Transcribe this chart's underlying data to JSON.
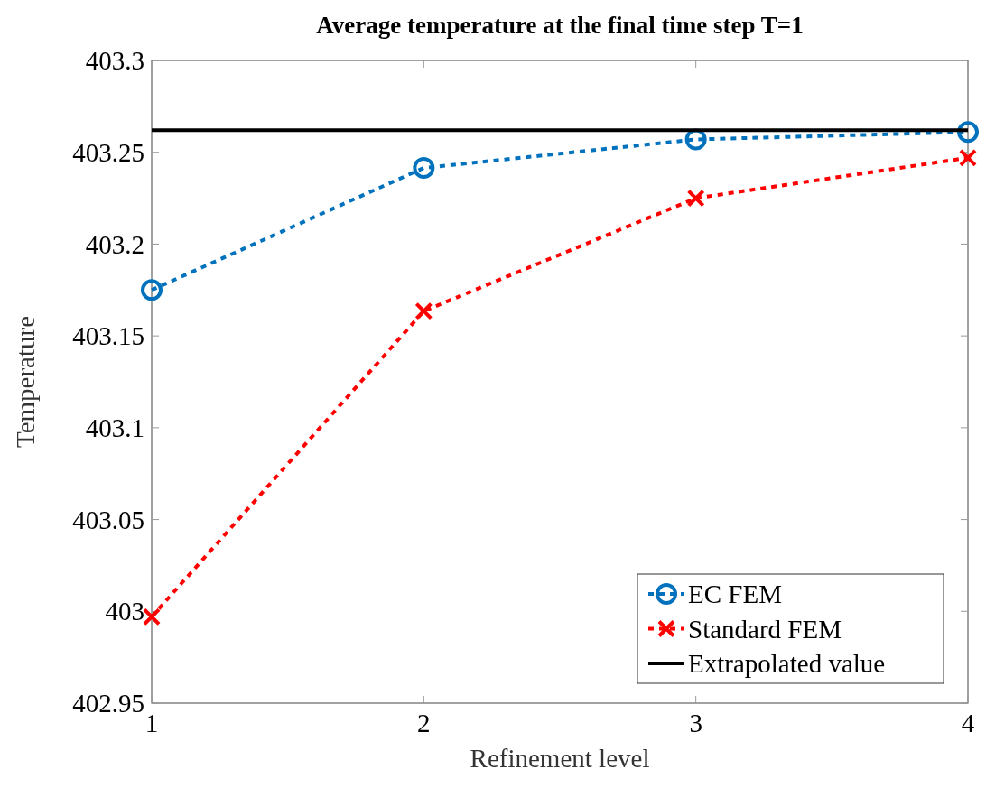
{
  "chart_data": {
    "type": "line",
    "title": "Average temperature at the final time step T=1",
    "xlabel": "Refinement level",
    "ylabel": "Temperature",
    "x": [
      1,
      2,
      3,
      4
    ],
    "xlim": [
      1,
      4
    ],
    "xticks": [
      1,
      2,
      3,
      4
    ],
    "ylim": [
      402.95,
      403.3
    ],
    "yticks": [
      402.95,
      403,
      403.05,
      403.1,
      403.15,
      403.2,
      403.25,
      403.3
    ],
    "grid": false,
    "legend": "bottom right",
    "series": [
      {
        "name": "EC FEM",
        "color": "#0072bd",
        "values": [
          403.175,
          403.2415,
          403.257,
          403.261
        ],
        "marker": "circle",
        "line_style": "dotted"
      },
      {
        "name": "Standard FEM",
        "color": "#ff0000",
        "values": [
          402.997,
          403.1635,
          403.225,
          403.247
        ],
        "marker": "cross",
        "line_style": "dotted"
      },
      {
        "name": "Extrapolated value",
        "color": "#000000",
        "values": [
          403.262,
          403.262,
          403.262,
          403.262
        ],
        "marker": "none",
        "line_style": "solid"
      }
    ]
  }
}
